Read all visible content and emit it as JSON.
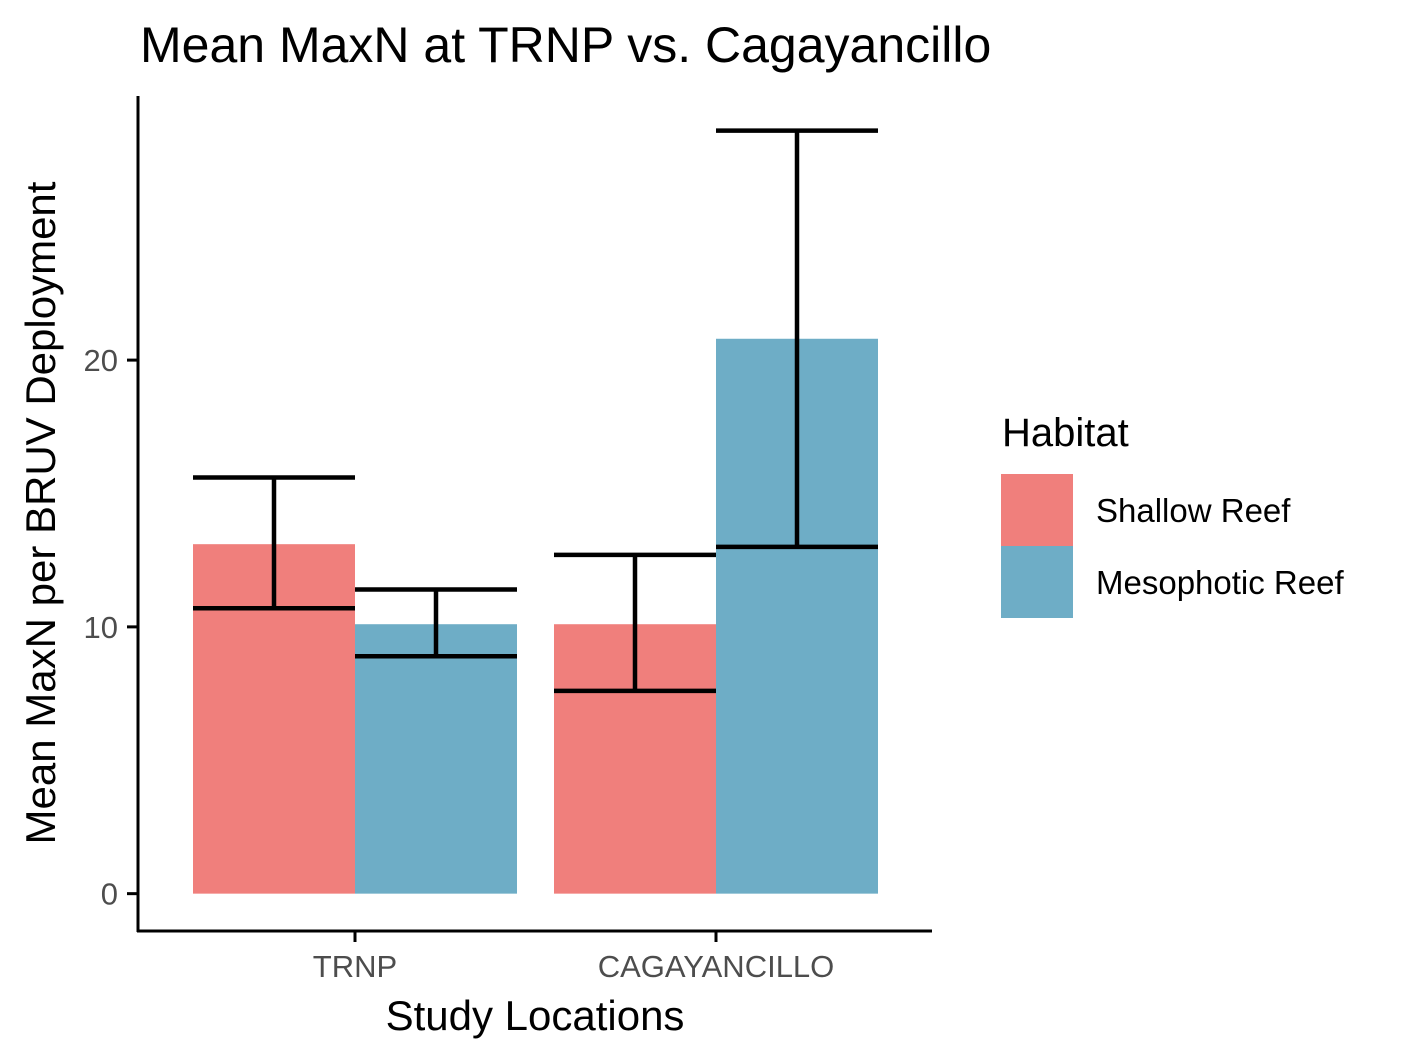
{
  "chart_data": {
    "type": "bar",
    "title": "Mean MaxN at TRNP vs. Cagayancillo",
    "xlabel": "Study Locations",
    "ylabel": "Mean MaxN per BRUV Deployment",
    "categories": [
      "TRNP",
      "CAGAYANCILLO"
    ],
    "ylim": [
      -1.4,
      29.9
    ],
    "yticks": [
      0,
      10,
      20
    ],
    "grid": false,
    "legend": {
      "title": "Habitat",
      "position": "right"
    },
    "series": [
      {
        "name": "Shallow Reef",
        "color": "#F07F7C",
        "values": [
          13.1,
          10.1
        ],
        "error_low": [
          10.7,
          7.6
        ],
        "error_high": [
          15.6,
          12.7
        ]
      },
      {
        "name": "Mesophotic Reef",
        "color": "#6EADC6",
        "values": [
          10.1,
          20.8
        ],
        "error_low": [
          8.9,
          13.0
        ],
        "error_high": [
          11.4,
          28.6
        ]
      }
    ]
  }
}
